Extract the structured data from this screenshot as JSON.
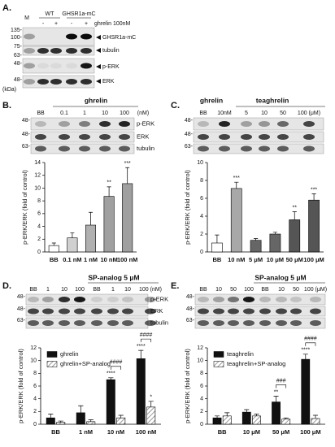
{
  "figure": {
    "A": {
      "letter": "A.",
      "marker_lane": "M",
      "groups": [
        "WT",
        "GHSR1a-mC"
      ],
      "treatment": "ghrelin 100nM",
      "signs": [
        "-",
        "+",
        "-",
        "+"
      ],
      "mw": [
        "135-",
        "100-",
        "75-",
        "63-",
        "48-",
        "48-"
      ],
      "kda": "(kDa)",
      "bands": [
        "GHSR1a-mC",
        "tubulin",
        "p-ERK",
        "ERK"
      ]
    },
    "B": {
      "letter": "B.",
      "header": "ghrelin",
      "lanes": [
        "BB",
        "0.1",
        "1",
        "10",
        "100",
        "(nM)"
      ],
      "mw": [
        "48-",
        "48-",
        "63-"
      ],
      "bands": [
        "p-ERK",
        "ERK",
        "tubulin"
      ]
    },
    "C": {
      "letter": "C.",
      "headers": [
        "ghrelin",
        "teaghrelin"
      ],
      "lanes": [
        "BB",
        "10nM",
        "5",
        "10",
        "50",
        "100 (μM)"
      ],
      "mw": [
        "48-",
        "48-",
        "63-"
      ]
    },
    "D": {
      "letter": "D.",
      "header": "SP-analog 5 μM",
      "lanes": [
        "BB",
        "1",
        "10",
        "100",
        "BB",
        "1",
        "10",
        "100 (nM)"
      ],
      "mw": [
        "48-",
        "48-",
        "63-"
      ],
      "bands": [
        "p-ERK",
        "ERK",
        "tubulin"
      ]
    },
    "E": {
      "letter": "E.",
      "header": "SP-analog 5 μM",
      "lanes": [
        "BB",
        "10",
        "50",
        "100",
        "BB",
        "10",
        "50",
        "100 (μM)"
      ],
      "mw": [
        "48-",
        "48-",
        "63-"
      ]
    }
  },
  "chart_data": [
    {
      "type": "bar",
      "y_label": "p-ERK/ERK (fold of control)",
      "categories": [
        "BB",
        "0.1 nM",
        "1 nM",
        "10 nM",
        "100 nM"
      ],
      "values": [
        1.0,
        2.2,
        4.2,
        8.7,
        10.7
      ],
      "errors": [
        0.4,
        0.8,
        2.0,
        1.5,
        2.5
      ],
      "colors": [
        "#ffffff",
        "#d0d0d0",
        "#b0b0b0",
        "#a0a0a0",
        "#a0a0a0"
      ],
      "annotations": [
        null,
        null,
        null,
        "**",
        "***"
      ],
      "ylim": [
        0,
        14
      ],
      "yticks": [
        0,
        2,
        4,
        6,
        8,
        10,
        12,
        14
      ]
    },
    {
      "type": "bar",
      "y_label": "p-ERK/ERK (fold of control)",
      "categories": [
        "BB",
        "10 nM",
        "5 μM",
        "10 μM",
        "50 μM",
        "100 μM"
      ],
      "values": [
        1.0,
        7.1,
        1.3,
        2.0,
        3.6,
        5.8
      ],
      "errors": [
        0.9,
        0.7,
        0.2,
        0.2,
        0.9,
        0.7
      ],
      "colors": [
        "#ffffff",
        "#a8a8a8",
        "#666666",
        "#666666",
        "#555555",
        "#555555"
      ],
      "annotations": [
        null,
        "***",
        null,
        null,
        "**",
        "***"
      ],
      "ylim": [
        0,
        10
      ],
      "yticks": [
        0,
        2,
        4,
        6,
        8,
        10
      ]
    },
    {
      "type": "grouped_bar",
      "y_label": "p-ERK/ERK (fold of control)",
      "categories": [
        "BB",
        "1 nM",
        "10 nM",
        "100 nM"
      ],
      "series": [
        {
          "name": "ghrelin",
          "color": "#111111",
          "hatch": false,
          "values": [
            1.0,
            1.8,
            7.0,
            10.3
          ],
          "errors": [
            0.6,
            1.1,
            0.3,
            1.3
          ],
          "annotations": [
            null,
            null,
            "****",
            "****"
          ]
        },
        {
          "name": "ghrelin+SP-analog",
          "color": "#999999",
          "hatch": true,
          "values": [
            0.3,
            0.4,
            1.0,
            2.7
          ],
          "errors": [
            0.2,
            0.3,
            0.4,
            0.9
          ],
          "annotations": [
            null,
            null,
            null,
            "*"
          ]
        }
      ],
      "bracket_labels": [
        null,
        null,
        "####",
        "####"
      ],
      "ylim": [
        0,
        12
      ],
      "yticks": [
        0,
        2,
        4,
        6,
        8,
        10,
        12
      ]
    },
    {
      "type": "grouped_bar",
      "y_label": "p-ERK/ERK (fold of control)",
      "categories": [
        "BB",
        "10 μM",
        "50 μM",
        "100 μM"
      ],
      "series": [
        {
          "name": "teaghrelin",
          "color": "#111111",
          "hatch": false,
          "values": [
            1.0,
            1.9,
            3.5,
            10.2
          ],
          "errors": [
            0.3,
            0.4,
            0.9,
            0.8
          ],
          "annotations": [
            null,
            null,
            "**",
            "****"
          ]
        },
        {
          "name": "teaghrelin+SP-analog",
          "color": "#999999",
          "hatch": true,
          "values": [
            1.3,
            1.3,
            0.8,
            0.9
          ],
          "errors": [
            0.5,
            0.3,
            0.2,
            0.5
          ],
          "annotations": [
            null,
            null,
            null,
            null
          ]
        }
      ],
      "bracket_labels": [
        null,
        null,
        "###",
        "####"
      ],
      "ylim": [
        0,
        12
      ],
      "yticks": [
        0,
        2,
        4,
        6,
        8,
        10,
        12
      ]
    }
  ]
}
